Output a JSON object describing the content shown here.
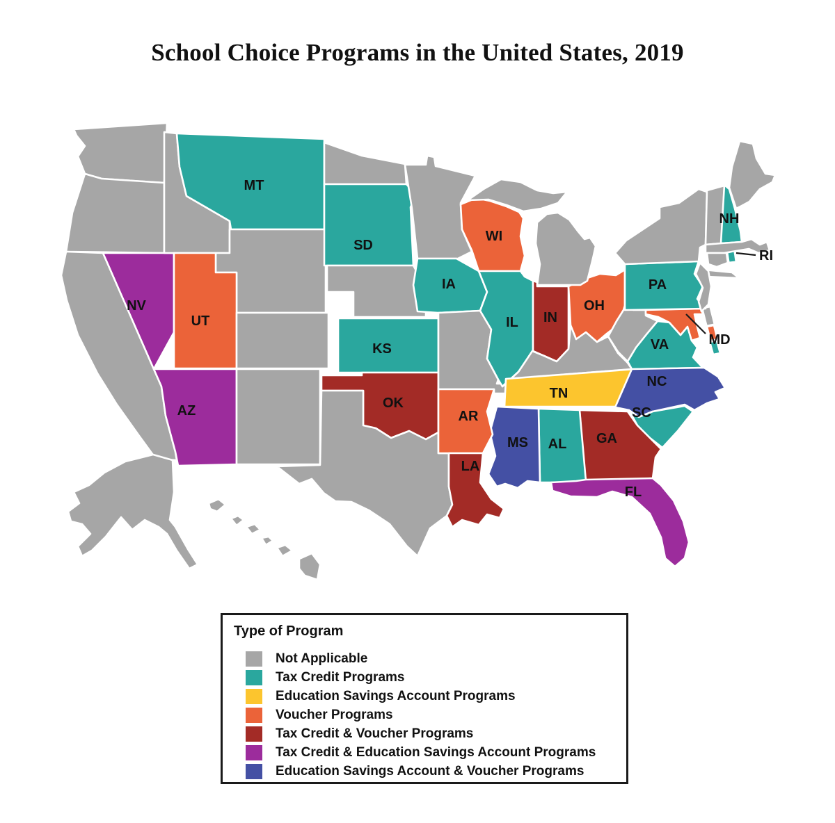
{
  "title": "School Choice Programs in the United States, 2019",
  "legend": {
    "title": "Type of Program",
    "items": [
      {
        "key": "na",
        "label": "Not Applicable",
        "color": "#A6A6A6"
      },
      {
        "key": "tc",
        "label": "Tax Credit Programs",
        "color": "#2AA79E"
      },
      {
        "key": "esa",
        "label": "Education Savings Account Programs",
        "color": "#FCC52E"
      },
      {
        "key": "v",
        "label": "Voucher Programs",
        "color": "#EB6339"
      },
      {
        "key": "tcv",
        "label": "Tax Credit & Voucher Programs",
        "color": "#A32B26"
      },
      {
        "key": "tcesa",
        "label": "Tax Credit & Education Savings Account Programs",
        "color": "#9C2C9C"
      },
      {
        "key": "esav",
        "label": "Education Savings Account & Voucher Programs",
        "color": "#4450A4"
      }
    ]
  },
  "map": {
    "border_color": "#ffffff",
    "label_color": "#111111",
    "states": [
      {
        "id": "WA",
        "program": "na",
        "abbr": ""
      },
      {
        "id": "OR",
        "program": "na",
        "abbr": ""
      },
      {
        "id": "CA",
        "program": "na",
        "abbr": ""
      },
      {
        "id": "NV",
        "program": "tcesa",
        "abbr": "NV"
      },
      {
        "id": "ID",
        "program": "na",
        "abbr": ""
      },
      {
        "id": "MT",
        "program": "tc",
        "abbr": "MT"
      },
      {
        "id": "WY",
        "program": "na",
        "abbr": ""
      },
      {
        "id": "UT",
        "program": "v",
        "abbr": "UT"
      },
      {
        "id": "CO",
        "program": "na",
        "abbr": ""
      },
      {
        "id": "AZ",
        "program": "tcesa",
        "abbr": "AZ"
      },
      {
        "id": "NM",
        "program": "na",
        "abbr": ""
      },
      {
        "id": "ND",
        "program": "na",
        "abbr": ""
      },
      {
        "id": "SD",
        "program": "tc",
        "abbr": "SD"
      },
      {
        "id": "NE",
        "program": "na",
        "abbr": ""
      },
      {
        "id": "KS",
        "program": "tc",
        "abbr": "KS"
      },
      {
        "id": "OK",
        "program": "tcv",
        "abbr": "OK"
      },
      {
        "id": "TX",
        "program": "na",
        "abbr": ""
      },
      {
        "id": "MN",
        "program": "na",
        "abbr": ""
      },
      {
        "id": "IA",
        "program": "tc",
        "abbr": "IA"
      },
      {
        "id": "MO",
        "program": "na",
        "abbr": ""
      },
      {
        "id": "WI",
        "program": "v",
        "abbr": "WI"
      },
      {
        "id": "IL",
        "program": "tc",
        "abbr": "IL"
      },
      {
        "id": "IN",
        "program": "tcv",
        "abbr": "IN"
      },
      {
        "id": "OH",
        "program": "v",
        "abbr": "OH"
      },
      {
        "id": "MI",
        "program": "na",
        "abbr": ""
      },
      {
        "id": "KY",
        "program": "na",
        "abbr": ""
      },
      {
        "id": "TN",
        "program": "esa",
        "abbr": "TN"
      },
      {
        "id": "WV",
        "program": "na",
        "abbr": ""
      },
      {
        "id": "VA",
        "program": "tc",
        "abbr": "VA"
      },
      {
        "id": "MD",
        "program": "v",
        "abbr": ""
      },
      {
        "id": "DE",
        "program": "na",
        "abbr": ""
      },
      {
        "id": "PA",
        "program": "tc",
        "abbr": "PA"
      },
      {
        "id": "NY",
        "program": "na",
        "abbr": ""
      },
      {
        "id": "NJ",
        "program": "na",
        "abbr": ""
      },
      {
        "id": "VT",
        "program": "na",
        "abbr": ""
      },
      {
        "id": "NH",
        "program": "tc",
        "abbr": "NH"
      },
      {
        "id": "ME",
        "program": "na",
        "abbr": ""
      },
      {
        "id": "MA",
        "program": "na",
        "abbr": ""
      },
      {
        "id": "RI",
        "program": "tc",
        "abbr": ""
      },
      {
        "id": "CT",
        "program": "na",
        "abbr": ""
      },
      {
        "id": "NC",
        "program": "esav",
        "abbr": "NC"
      },
      {
        "id": "SC",
        "program": "tc",
        "abbr": "SC"
      },
      {
        "id": "GA",
        "program": "tcv",
        "abbr": "GA"
      },
      {
        "id": "AL",
        "program": "tc",
        "abbr": "AL"
      },
      {
        "id": "MS",
        "program": "esav",
        "abbr": "MS"
      },
      {
        "id": "AR",
        "program": "v",
        "abbr": "AR"
      },
      {
        "id": "LA",
        "program": "tcv",
        "abbr": "LA"
      },
      {
        "id": "FL",
        "program": "tcesa",
        "abbr": "FL"
      },
      {
        "id": "AK",
        "program": "na",
        "abbr": ""
      },
      {
        "id": "HI",
        "program": "na",
        "abbr": ""
      }
    ],
    "callouts": [
      {
        "id": "RI",
        "label": "RI"
      },
      {
        "id": "MD",
        "label": "MD"
      }
    ]
  }
}
